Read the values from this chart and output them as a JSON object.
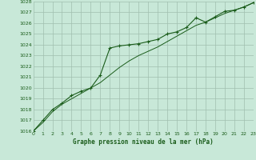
{
  "title": "Graphe pression niveau de la mer (hPa)",
  "background_color": "#c8e8d8",
  "grid_color": "#a0bfaf",
  "line_color": "#1a5c1a",
  "x_values": [
    0,
    1,
    2,
    3,
    4,
    5,
    6,
    7,
    8,
    9,
    10,
    11,
    12,
    13,
    14,
    15,
    16,
    17,
    18,
    19,
    20,
    21,
    22,
    23
  ],
  "line1_y": [
    1016.0,
    1017.0,
    1018.0,
    1018.6,
    1019.3,
    1019.7,
    1020.0,
    1021.2,
    1023.7,
    1023.9,
    1024.0,
    1024.1,
    1024.3,
    1024.5,
    1025.0,
    1025.2,
    1025.6,
    1026.5,
    1026.1,
    1026.6,
    1027.1,
    1027.2,
    1027.5,
    1027.9
  ],
  "line2_y": [
    1016.0,
    1016.8,
    1017.8,
    1018.5,
    1019.0,
    1019.5,
    1020.0,
    1020.5,
    1021.2,
    1021.9,
    1022.5,
    1023.0,
    1023.4,
    1023.8,
    1024.3,
    1024.8,
    1025.3,
    1025.8,
    1026.1,
    1026.5,
    1026.9,
    1027.2,
    1027.5,
    1027.9
  ],
  "ylim": [
    1016,
    1028
  ],
  "xlim": [
    0,
    23
  ],
  "yticks": [
    1016,
    1017,
    1018,
    1019,
    1020,
    1021,
    1022,
    1023,
    1024,
    1025,
    1026,
    1027,
    1028
  ],
  "xticks": [
    0,
    1,
    2,
    3,
    4,
    5,
    6,
    7,
    8,
    9,
    10,
    11,
    12,
    13,
    14,
    15,
    16,
    17,
    18,
    19,
    20,
    21,
    22,
    23
  ],
  "xlabel_fontsize": 5.5,
  "tick_fontsize": 4.5
}
